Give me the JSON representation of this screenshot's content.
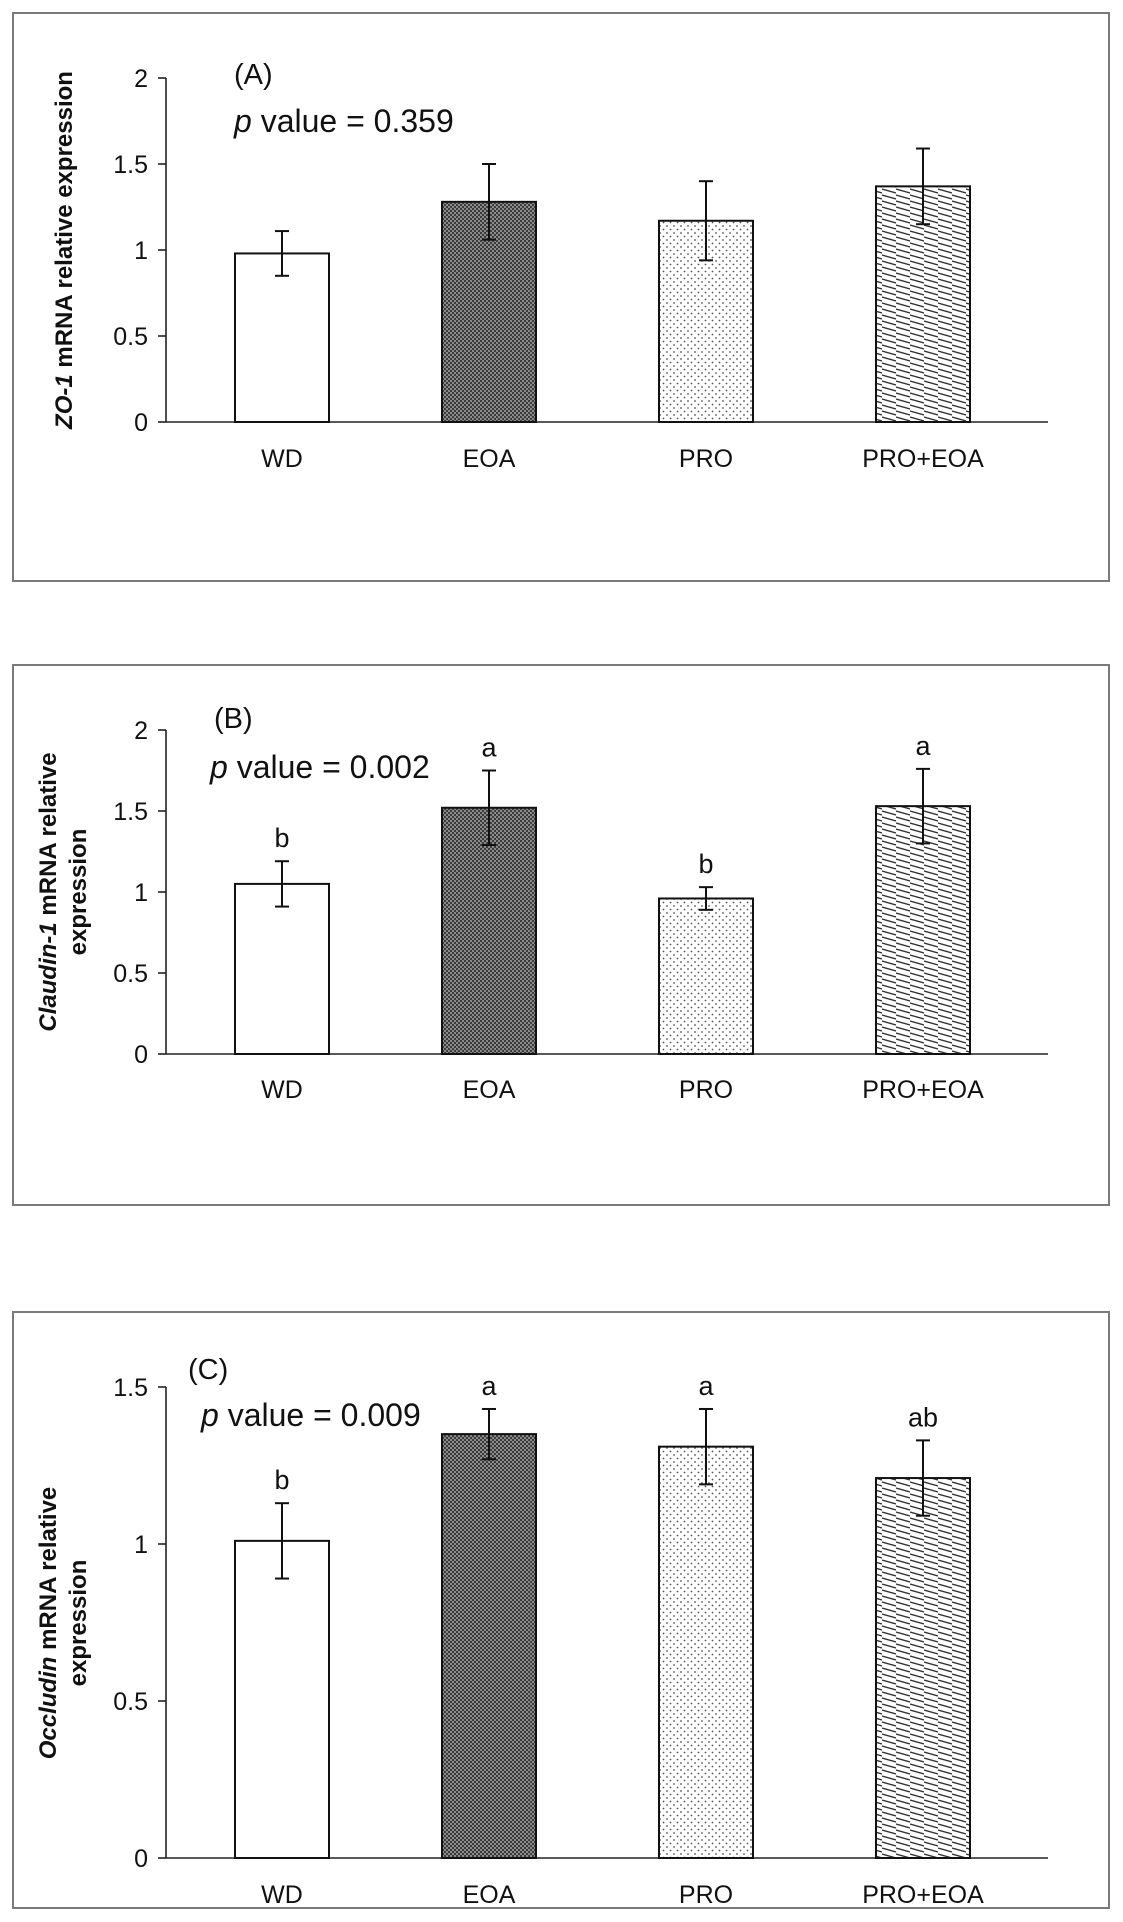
{
  "chart_data": [
    {
      "type": "bar",
      "panel": "(A)",
      "p_label": "p",
      "p_text": " value = 0.359",
      "ylabel_italic": "ZO-1",
      "ylabel_rest": " mRNA relative expression",
      "ylabel_line2": "",
      "categories": [
        "WD",
        "EOA",
        "PRO",
        "PRO+EOA"
      ],
      "values": [
        0.98,
        1.28,
        1.17,
        1.37
      ],
      "errors": [
        0.13,
        0.22,
        0.23,
        0.22
      ],
      "letters": [
        "",
        "",
        "",
        ""
      ],
      "ylim": [
        0,
        2
      ],
      "yticks": [
        "0",
        "0.5",
        "1",
        "1.5",
        "2"
      ],
      "ytick_values": [
        0,
        0.5,
        1,
        1.5,
        2
      ]
    },
    {
      "type": "bar",
      "panel": "(B)",
      "p_label": "p",
      "p_text": " value = 0.002",
      "ylabel_italic": "Claudin-1",
      "ylabel_rest": " mRNA relative",
      "ylabel_line2": "expression",
      "categories": [
        "WD",
        "EOA",
        "PRO",
        "PRO+EOA"
      ],
      "values": [
        1.05,
        1.52,
        0.96,
        1.53
      ],
      "errors": [
        0.14,
        0.23,
        0.07,
        0.23
      ],
      "letters": [
        "b",
        "a",
        "b",
        "a"
      ],
      "ylim": [
        0,
        2
      ],
      "yticks": [
        "0",
        "0.5",
        "1",
        "1.5",
        "2"
      ],
      "ytick_values": [
        0,
        0.5,
        1,
        1.5,
        2
      ]
    },
    {
      "type": "bar",
      "panel": "(C)",
      "p_label": "p",
      "p_text": " value = 0.009",
      "ylabel_italic": "Occludin",
      "ylabel_rest": " mRNA relative",
      "ylabel_line2": "expression",
      "categories": [
        "WD",
        "EOA",
        "PRO",
        "PRO+EOA"
      ],
      "values": [
        1.01,
        1.35,
        1.31,
        1.21
      ],
      "errors": [
        0.12,
        0.08,
        0.12,
        0.12
      ],
      "letters": [
        "b",
        "a",
        "a",
        "ab"
      ],
      "ylim": [
        0,
        1.5
      ],
      "yticks": [
        "0",
        "0.5",
        "1",
        "1.5"
      ],
      "ytick_values": [
        0,
        0.5,
        1,
        1.5
      ]
    }
  ]
}
